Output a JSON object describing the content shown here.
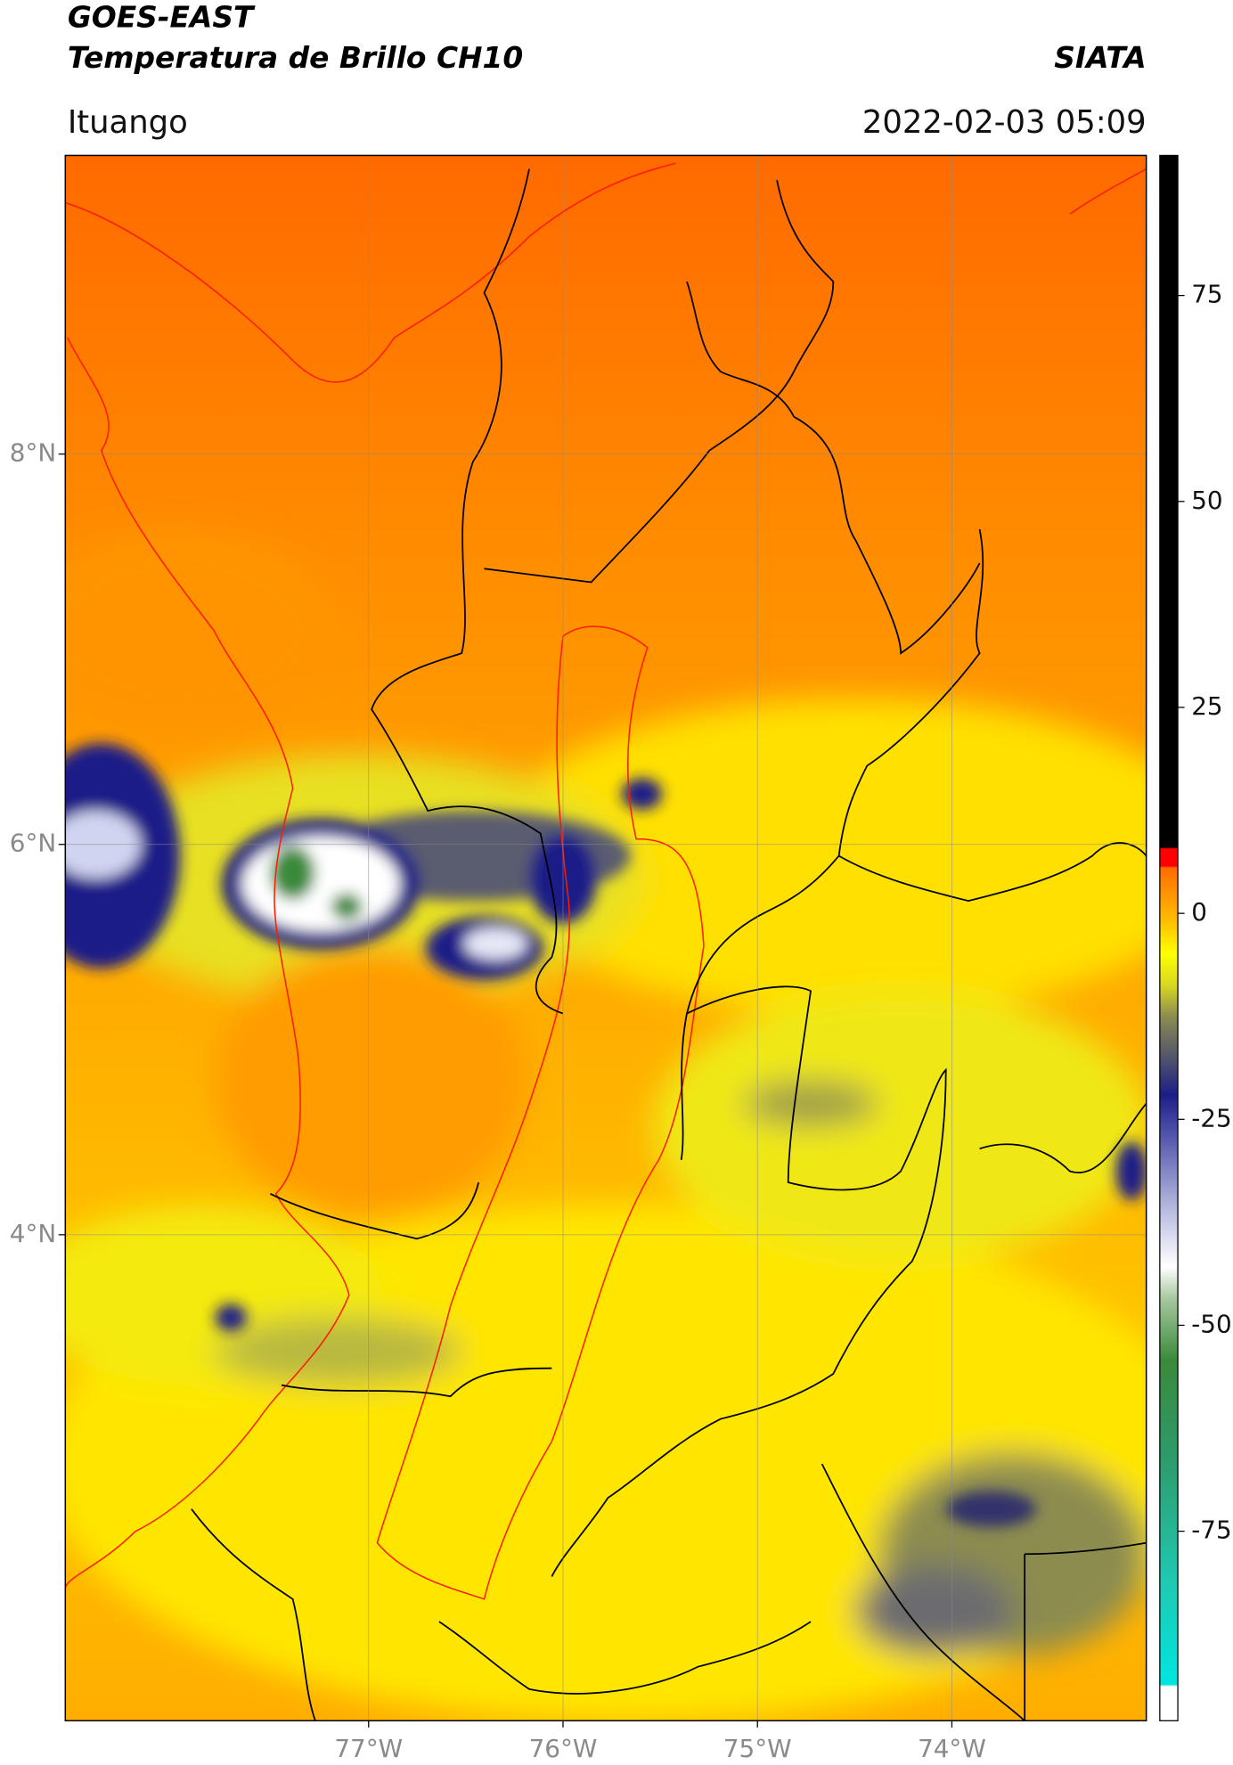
{
  "header": {
    "title_line1": "GOES-EAST",
    "title_line2": "Temperatura de Brillo CH10",
    "agency": "SIATA",
    "region": "Ituango",
    "datetime": "2022-02-03 05:09"
  },
  "map": {
    "xlim": [
      -78.56,
      -73.0
    ],
    "ylim": [
      1.51,
      9.53
    ],
    "grid": true,
    "xticks": [
      {
        "value": -77,
        "label": "77°W"
      },
      {
        "value": -76,
        "label": "76°W"
      },
      {
        "value": -75,
        "label": "75°W"
      },
      {
        "value": -74,
        "label": "74°W"
      }
    ],
    "yticks": [
      {
        "value": 4,
        "label": "4°N"
      },
      {
        "value": 6,
        "label": "6°N"
      },
      {
        "value": 8,
        "label": "8°N"
      }
    ]
  },
  "colorbar": {
    "lim": [
      -98,
      92
    ],
    "ticks": [
      -75,
      -50,
      -25,
      0,
      25,
      50,
      75
    ]
  }
}
